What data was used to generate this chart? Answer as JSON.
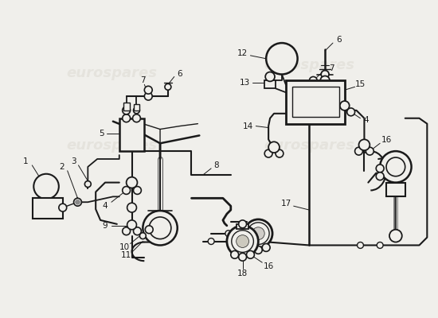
{
  "bg_color": "#f0efeb",
  "line_color": "#1a1a1a",
  "watermark_color": "#ccc9be",
  "watermark_text": "eurospares",
  "fig_width": 5.5,
  "fig_height": 4.0,
  "dpi": 100
}
